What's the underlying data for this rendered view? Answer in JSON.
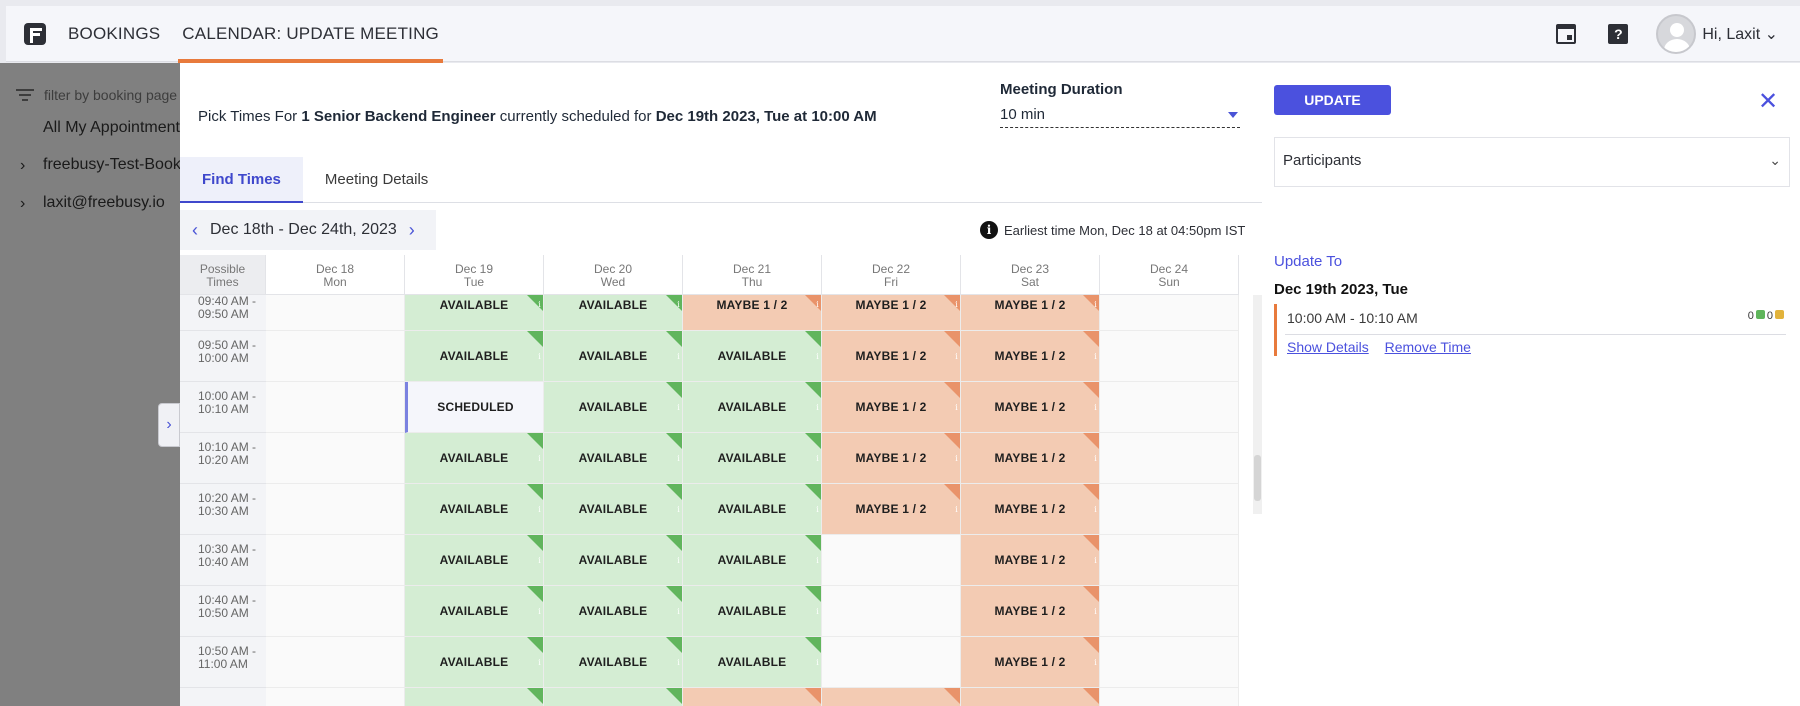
{
  "topnav": {
    "items": [
      "BOOKINGS",
      "CALENDAR: UPDATE MEETING"
    ],
    "greeting": "Hi, Laxit"
  },
  "sidebar": {
    "filter_placeholder": "filter by booking page",
    "all_label": "All My Appointments",
    "items": [
      "freebusy-Test-Bookings",
      "laxit@freebusy.io"
    ]
  },
  "header": {
    "pick_prefix": "Pick Times For",
    "pick_title": "1 Senior Backend Engineer",
    "pick_middle": "currently scheduled for",
    "pick_when": "Dec 19th 2023, Tue at 10:00 AM",
    "duration_label": "Meeting Duration",
    "duration_value": "10 min",
    "update_label": "UPDATE",
    "close_symbol": "✕"
  },
  "tabs": [
    {
      "label": "Find Times",
      "active": true
    },
    {
      "label": "Meeting Details",
      "active": false
    }
  ],
  "week_nav": {
    "range": "Dec 18th - Dec 24th, 2023",
    "prev": "‹",
    "next": "›"
  },
  "earliest": "Earliest time Mon, Dec 18 at 04:50pm IST",
  "grid": {
    "corner": [
      "Possible",
      "Times"
    ],
    "days": [
      {
        "date": "Dec 18",
        "dow": "Mon"
      },
      {
        "date": "Dec 19",
        "dow": "Tue"
      },
      {
        "date": "Dec 20",
        "dow": "Wed"
      },
      {
        "date": "Dec 21",
        "dow": "Thu"
      },
      {
        "date": "Dec 22",
        "dow": "Fri"
      },
      {
        "date": "Dec 23",
        "dow": "Sat"
      },
      {
        "date": "Dec 24",
        "dow": "Sun"
      }
    ],
    "labels": {
      "available": "AVAILABLE",
      "maybe": "MAYBE 1 / 2",
      "scheduled": "SCHEDULED",
      "info": "i"
    },
    "rows": [
      {
        "time": [
          "09:40 AM -",
          "09:50 AM"
        ],
        "cells": [
          "empty",
          "available",
          "available",
          "maybe",
          "maybe",
          "maybe",
          "empty"
        ]
      },
      {
        "time": [
          "09:50 AM -",
          "10:00 AM"
        ],
        "cells": [
          "empty",
          "available",
          "available",
          "available",
          "maybe",
          "maybe",
          "empty"
        ]
      },
      {
        "time": [
          "10:00 AM -",
          "10:10 AM"
        ],
        "cells": [
          "empty",
          "scheduled",
          "available",
          "available",
          "maybe",
          "maybe",
          "empty"
        ]
      },
      {
        "time": [
          "10:10 AM -",
          "10:20 AM"
        ],
        "cells": [
          "empty",
          "available",
          "available",
          "available",
          "maybe",
          "maybe",
          "empty"
        ]
      },
      {
        "time": [
          "10:20 AM -",
          "10:30 AM"
        ],
        "cells": [
          "empty",
          "available",
          "available",
          "available",
          "maybe",
          "maybe",
          "empty"
        ]
      },
      {
        "time": [
          "10:30 AM -",
          "10:40 AM"
        ],
        "cells": [
          "empty",
          "available",
          "available",
          "available",
          "empty",
          "maybe",
          "empty"
        ]
      },
      {
        "time": [
          "10:40 AM -",
          "10:50 AM"
        ],
        "cells": [
          "empty",
          "available",
          "available",
          "available",
          "empty",
          "maybe",
          "empty"
        ]
      },
      {
        "time": [
          "10:50 AM -",
          "11:00 AM"
        ],
        "cells": [
          "empty",
          "available",
          "available",
          "available",
          "empty",
          "maybe",
          "empty"
        ]
      },
      {
        "time": [
          "",
          ""
        ],
        "cells": [
          "empty",
          "available",
          "available",
          "maybe",
          "maybe",
          "maybe",
          "empty"
        ]
      }
    ]
  },
  "right": {
    "participants_label": "Participants",
    "update_to": "Update To",
    "selected_date": "Dec 19th 2023, Tue",
    "selected_time": "10:00 AM - 10:10 AM",
    "votes_yes": "0",
    "votes_no": "0",
    "show_details": "Show Details",
    "remove_time": "Remove Time"
  },
  "colors": {
    "accent": "#4b51de",
    "nav_underline": "#e87a3c",
    "available": "#d4edd3",
    "maybe": "#f3cbb3"
  }
}
